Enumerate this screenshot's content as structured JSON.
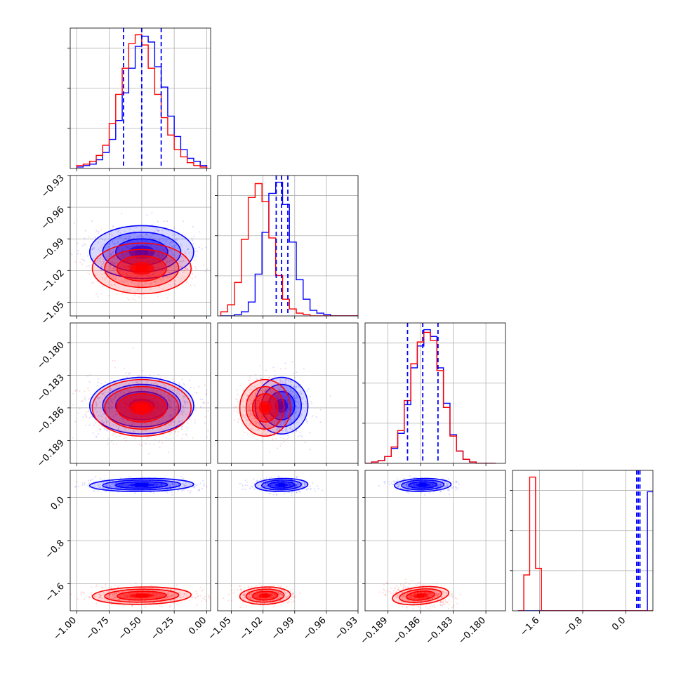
{
  "chart_data": {
    "type": "corner",
    "grid": true,
    "colors": {
      "blue": "#0000ff",
      "red": "#ff0000",
      "grid": "#b0b0b0",
      "frame": "#000000"
    },
    "params": [
      {
        "lim": [
          -1.05,
          0.03
        ],
        "ticks": [
          -1.0,
          -0.75,
          -0.5,
          -0.25,
          0.0
        ],
        "labels": [
          "−1.00",
          "−0.75",
          "−0.50",
          "−0.25",
          "0.00"
        ]
      },
      {
        "lim": [
          -1.063,
          -0.93
        ],
        "ticks": [
          -1.05,
          -1.02,
          -0.99,
          -0.96,
          -0.93
        ],
        "labels": [
          "−1.05",
          "−1.02",
          "−0.99",
          "−0.96",
          "−0.93"
        ]
      },
      {
        "lim": [
          -0.1911,
          -0.1782
        ],
        "ticks": [
          -0.189,
          -0.186,
          -0.183,
          -0.18
        ],
        "labels": [
          "−0.189",
          "−0.186",
          "−0.183",
          "−0.180"
        ]
      },
      {
        "lim": [
          -2.1,
          0.5
        ],
        "ticks": [
          -1.6,
          -0.8,
          0.0
        ],
        "labels": [
          "−1.6",
          "−0.8",
          "0.0"
        ]
      }
    ],
    "diagonal": [
      {
        "edges_start": -1.0,
        "edges_step": 0.05,
        "blue": [
          1,
          2,
          3,
          6,
          11,
          20,
          33,
          52,
          69,
          84,
          91,
          87,
          70,
          56,
          36,
          22,
          13,
          7,
          5,
          2
        ],
        "red": [
          2,
          3,
          5,
          9,
          16,
          31,
          51,
          69,
          86,
          92,
          85,
          69,
          51,
          35,
          23,
          13,
          8,
          4,
          2,
          1
        ],
        "quantiles": [
          -0.64,
          -0.5,
          -0.35
        ]
      },
      {
        "edges_start": -1.06,
        "edges_step": 0.0065,
        "blue": [
          0,
          0,
          1,
          3,
          10,
          30,
          60,
          88,
          96,
          80,
          53,
          26,
          12,
          4,
          2,
          1,
          0,
          0,
          0,
          0
        ],
        "red": [
          3,
          8,
          24,
          55,
          85,
          95,
          82,
          56,
          29,
          12,
          5,
          2,
          1,
          0,
          0,
          0,
          0,
          0,
          0,
          0
        ],
        "quantiles": [
          -1.0075,
          -1.0025,
          -0.9965
        ]
      },
      {
        "edges_start": -0.1911,
        "edges_step": 0.0006,
        "blue": [
          0,
          1,
          2,
          5,
          11,
          22,
          43,
          70,
          86,
          98,
          93,
          70,
          44,
          21,
          9,
          3,
          1,
          0,
          0,
          0
        ],
        "red": [
          0,
          1,
          2,
          5,
          12,
          24,
          46,
          73,
          89,
          96,
          90,
          68,
          41,
          20,
          9,
          3,
          1,
          0,
          0,
          0
        ],
        "quantiles": [
          -0.1872,
          -0.1858,
          -0.1844
        ]
      },
      {
        "edges_start": -2.0,
        "edges_step": 0.109,
        "blue": [
          0,
          0,
          0,
          0,
          0,
          0,
          0,
          0,
          0,
          0,
          0,
          0,
          0,
          0,
          0,
          0,
          0,
          0,
          0,
          0,
          0,
          0,
          73,
          0
        ],
        "red": [
          0,
          22,
          82,
          26,
          0,
          0,
          0,
          0,
          0,
          0,
          0,
          0,
          0,
          0,
          0,
          0,
          0,
          0,
          0,
          0,
          0,
          0,
          0,
          0
        ],
        "quantiles": [
          0.2,
          0.23,
          0.26
        ]
      }
    ],
    "samples": {
      "blue": {
        "mean": [
          -0.5,
          -1.0025,
          -0.1858,
          0.23
        ],
        "sd": [
          0.2,
          0.0125,
          0.0013,
          0.06
        ]
      },
      "red": {
        "mean": [
          -0.5,
          -1.018,
          -0.186,
          -1.82
        ],
        "sd": [
          0.19,
          0.012,
          0.0013,
          0.08
        ]
      }
    }
  }
}
